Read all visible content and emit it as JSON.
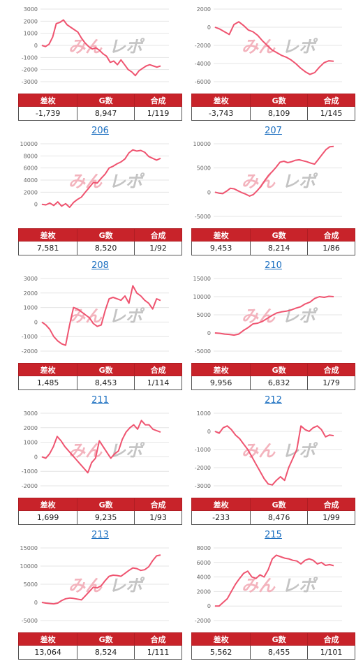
{
  "colors": {
    "line": "#ef5470",
    "header_bg": "#c8232a",
    "link": "#1a6ec0",
    "grid": "#e4e4e4"
  },
  "watermark": {
    "left": "みん",
    "right": "レポ"
  },
  "table_headers": {
    "diff": "差枚",
    "games": "G数",
    "ratio": "合成"
  },
  "cards": [
    {
      "title": "",
      "diff": "-1,739",
      "games": "8,947",
      "ratio": "1/119"
    },
    {
      "title": "",
      "diff": "-3,743",
      "games": "8,109",
      "ratio": "1/145"
    },
    {
      "title": "206",
      "diff": "7,581",
      "games": "8,520",
      "ratio": "1/92"
    },
    {
      "title": "207",
      "diff": "9,453",
      "games": "8,214",
      "ratio": "1/86"
    },
    {
      "title": "208",
      "diff": "1,485",
      "games": "8,453",
      "ratio": "1/114"
    },
    {
      "title": "210",
      "diff": "9,956",
      "games": "6,832",
      "ratio": "1/79"
    },
    {
      "title": "211",
      "diff": "1,699",
      "games": "9,235",
      "ratio": "1/93"
    },
    {
      "title": "212",
      "diff": "-233",
      "games": "8,476",
      "ratio": "1/99"
    },
    {
      "title": "213",
      "diff": "13,064",
      "games": "8,524",
      "ratio": "1/111"
    },
    {
      "title": "215",
      "diff": "5,562",
      "games": "8,455",
      "ratio": "1/101"
    }
  ],
  "chart_data": [
    {
      "type": "line",
      "ylim": [
        -3000,
        3000
      ],
      "yticks": [
        -3000,
        -2000,
        -1000,
        0,
        1000,
        2000,
        3000
      ],
      "values": [
        0,
        -100,
        100,
        700,
        1800,
        1900,
        2100,
        1700,
        1500,
        1300,
        1100,
        600,
        200,
        -100,
        -300,
        -200,
        -400,
        -700,
        -900,
        -1400,
        -1300,
        -1600,
        -1200,
        -1600,
        -2000,
        -2200,
        -2500,
        -2100,
        -1900,
        -1700,
        -1600,
        -1700,
        -1800,
        -1700
      ]
    },
    {
      "type": "line",
      "ylim": [
        -6000,
        2000
      ],
      "yticks": [
        -6000,
        -4000,
        -2000,
        0,
        2000
      ],
      "values": [
        0,
        -200,
        -500,
        -800,
        300,
        600,
        200,
        -300,
        -500,
        -900,
        -1500,
        -2000,
        -2500,
        -2800,
        -3100,
        -3300,
        -3600,
        -4000,
        -4500,
        -4900,
        -5200,
        -5000,
        -4400,
        -3900,
        -3700,
        -3750
      ]
    },
    {
      "type": "line",
      "ylim": [
        -2000,
        10000
      ],
      "yticks": [
        0,
        2000,
        4000,
        6000,
        8000,
        10000
      ],
      "values": [
        0,
        -100,
        200,
        -200,
        400,
        -300,
        100,
        -500,
        300,
        800,
        1200,
        2000,
        2800,
        3600,
        3500,
        4300,
        5000,
        6000,
        6300,
        6700,
        7000,
        7500,
        8500,
        9000,
        8800,
        8900,
        8600,
        7900,
        7600,
        7300,
        7600
      ]
    },
    {
      "type": "line",
      "ylim": [
        -5000,
        10000
      ],
      "yticks": [
        -5000,
        0,
        5000,
        10000
      ],
      "values": [
        0,
        -200,
        -300,
        200,
        800,
        700,
        300,
        -100,
        -400,
        -800,
        -500,
        300,
        1200,
        2400,
        3500,
        4300,
        5200,
        6200,
        6400,
        6100,
        6300,
        6600,
        6700,
        6500,
        6300,
        6000,
        5800,
        6800,
        7800,
        8800,
        9400,
        9453
      ]
    },
    {
      "type": "line",
      "ylim": [
        -2000,
        3000
      ],
      "yticks": [
        -2000,
        -1000,
        0,
        1000,
        2000,
        3000
      ],
      "values": [
        0,
        -200,
        -500,
        -1000,
        -1300,
        -1500,
        -1600,
        -200,
        1000,
        900,
        700,
        500,
        300,
        -100,
        -300,
        -200,
        800,
        1600,
        1700,
        1600,
        1500,
        1800,
        1300,
        2500,
        2000,
        1800,
        1500,
        1300,
        900,
        1600,
        1485
      ]
    },
    {
      "type": "line",
      "ylim": [
        -5000,
        15000
      ],
      "yticks": [
        -5000,
        0,
        5000,
        10000,
        15000
      ],
      "values": [
        0,
        -100,
        -300,
        -400,
        -600,
        -300,
        700,
        1500,
        2500,
        2700,
        3200,
        4000,
        4800,
        5500,
        5800,
        6000,
        6300,
        6800,
        7200,
        8000,
        8500,
        9500,
        10000,
        9800,
        10100,
        10000
      ]
    },
    {
      "type": "line",
      "ylim": [
        -2000,
        3000
      ],
      "yticks": [
        -2000,
        -1000,
        0,
        1000,
        2000,
        3000
      ],
      "values": [
        0,
        -100,
        200,
        700,
        1400,
        1100,
        700,
        400,
        100,
        -200,
        -500,
        -800,
        -1100,
        -400,
        -100,
        1100,
        700,
        300,
        -100,
        200,
        400,
        1200,
        1700,
        2000,
        2200,
        1900,
        2500,
        2200,
        2200,
        1900,
        1800,
        1699
      ]
    },
    {
      "type": "line",
      "ylim": [
        -3000,
        1000
      ],
      "yticks": [
        -3000,
        -2000,
        -1000,
        0,
        1000
      ],
      "values": [
        0,
        -100,
        200,
        300,
        100,
        -200,
        -400,
        -700,
        -1000,
        -1400,
        -1800,
        -2200,
        -2600,
        -2900,
        -2950,
        -2700,
        -2500,
        -2700,
        -2000,
        -1500,
        -1000,
        300,
        100,
        0,
        200,
        300,
        100,
        -300,
        -200,
        -233
      ]
    },
    {
      "type": "line",
      "ylim": [
        -5000,
        15000
      ],
      "yticks": [
        -5000,
        0,
        5000,
        10000,
        15000
      ],
      "values": [
        0,
        -200,
        -300,
        -400,
        -200,
        500,
        1000,
        1200,
        1100,
        900,
        700,
        1800,
        3000,
        4200,
        4000,
        4600,
        6000,
        7200,
        7500,
        7400,
        7200,
        8000,
        8800,
        9500,
        9300,
        8800,
        9000,
        9800,
        11500,
        12800,
        13064
      ]
    },
    {
      "type": "line",
      "ylim": [
        -2000,
        8000
      ],
      "yticks": [
        -2000,
        0,
        2000,
        4000,
        6000,
        8000
      ],
      "values": [
        0,
        0,
        500,
        1000,
        2000,
        3000,
        3800,
        4500,
        4800,
        4000,
        3800,
        4300,
        4000,
        5000,
        6500,
        7000,
        6800,
        6600,
        6500,
        6300,
        6200,
        5800,
        6300,
        6500,
        6300,
        5800,
        6000,
        5600,
        5700,
        5562
      ]
    }
  ]
}
